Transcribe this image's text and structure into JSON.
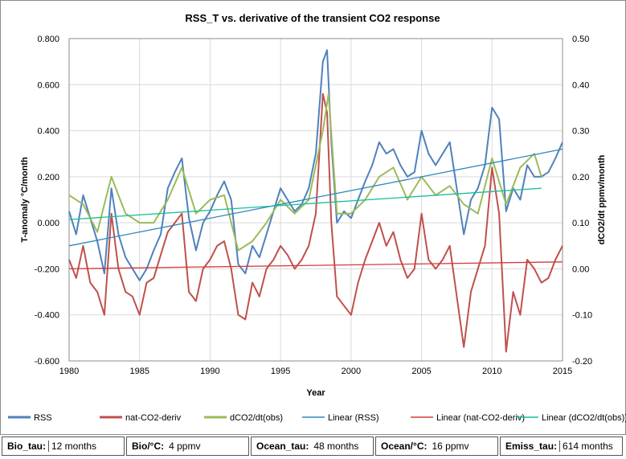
{
  "chart_data": {
    "type": "line",
    "title": "RSS_T vs. derivative of the transient CO2 response",
    "xlabel": "Year",
    "ylabel": "T-anomaly °C/month",
    "y2label": "dCO2/dt ppmv/month",
    "xlim": [
      1980,
      2015
    ],
    "ylim": [
      -0.6,
      0.8
    ],
    "y2lim": [
      -0.2,
      0.5
    ],
    "x_ticks": [
      "1980",
      "1985",
      "1990",
      "1995",
      "2000",
      "2005",
      "2010",
      "2015"
    ],
    "y_ticks": [
      "-0.600",
      "-0.400",
      "-0.200",
      "0.000",
      "0.200",
      "0.400",
      "0.600",
      "0.800"
    ],
    "y2_ticks": [
      "-0.20",
      "-0.10",
      "0.00",
      "0.10",
      "0.20",
      "0.30",
      "0.40",
      "0.50"
    ],
    "grid": true,
    "legend_position": "bottom",
    "series": [
      {
        "name": "RSS",
        "axis": "left",
        "color": "#4f81bd",
        "x": [
          1980.0,
          1980.5,
          1981.0,
          1981.5,
          1982.0,
          1982.5,
          1983.0,
          1983.5,
          1984.0,
          1984.5,
          1985.0,
          1985.5,
          1986.0,
          1986.5,
          1987.0,
          1987.5,
          1988.0,
          1988.5,
          1989.0,
          1989.5,
          1990.0,
          1990.5,
          1991.0,
          1991.5,
          1992.0,
          1992.5,
          1993.0,
          1993.5,
          1994.0,
          1994.5,
          1995.0,
          1995.5,
          1996.0,
          1996.5,
          1997.0,
          1997.5,
          1998.0,
          1998.3,
          1998.6,
          1999.0,
          1999.5,
          2000.0,
          2000.5,
          2001.0,
          2001.5,
          2002.0,
          2002.5,
          2003.0,
          2003.5,
          2004.0,
          2004.5,
          2005.0,
          2005.5,
          2006.0,
          2006.5,
          2007.0,
          2007.5,
          2008.0,
          2008.5,
          2009.0,
          2009.5,
          2010.0,
          2010.5,
          2011.0,
          2011.5,
          2012.0,
          2012.5,
          2013.0,
          2013.5,
          2014.0,
          2014.5,
          2015.0
        ],
        "y": [
          0.05,
          -0.05,
          0.12,
          0.02,
          -0.08,
          -0.22,
          0.15,
          -0.05,
          -0.15,
          -0.2,
          -0.25,
          -0.2,
          -0.12,
          -0.05,
          0.15,
          0.22,
          0.28,
          0.02,
          -0.12,
          0.0,
          0.05,
          0.12,
          0.18,
          0.1,
          -0.18,
          -0.22,
          -0.1,
          -0.15,
          -0.05,
          0.05,
          0.15,
          0.1,
          0.05,
          0.08,
          0.15,
          0.3,
          0.7,
          0.75,
          0.35,
          0.0,
          0.05,
          0.02,
          0.1,
          0.18,
          0.25,
          0.35,
          0.3,
          0.32,
          0.25,
          0.2,
          0.22,
          0.4,
          0.3,
          0.25,
          0.3,
          0.35,
          0.15,
          -0.05,
          0.1,
          0.15,
          0.25,
          0.5,
          0.45,
          0.05,
          0.15,
          0.1,
          0.25,
          0.2,
          0.2,
          0.22,
          0.28,
          0.35
        ]
      },
      {
        "name": "nat-CO2-deriv",
        "axis": "right",
        "color": "#c0504d",
        "x": [
          1980.0,
          1980.5,
          1981.0,
          1981.5,
          1982.0,
          1982.5,
          1983.0,
          1983.5,
          1984.0,
          1984.5,
          1985.0,
          1985.5,
          1986.0,
          1986.5,
          1987.0,
          1987.5,
          1988.0,
          1988.5,
          1989.0,
          1989.5,
          1990.0,
          1990.5,
          1991.0,
          1991.5,
          1992.0,
          1992.5,
          1993.0,
          1993.5,
          1994.0,
          1994.5,
          1995.0,
          1995.5,
          1996.0,
          1996.5,
          1997.0,
          1997.5,
          1998.0,
          1998.3,
          1998.6,
          1999.0,
          1999.5,
          2000.0,
          2000.5,
          2001.0,
          2001.5,
          2002.0,
          2002.5,
          2003.0,
          2003.5,
          2004.0,
          2004.5,
          2005.0,
          2005.5,
          2006.0,
          2006.5,
          2007.0,
          2007.5,
          2008.0,
          2008.5,
          2009.0,
          2009.5,
          2010.0,
          2010.5,
          2011.0,
          2011.5,
          2012.0,
          2012.5,
          2013.0,
          2013.5,
          2014.0,
          2014.5,
          2015.0
        ],
        "y": [
          0.02,
          -0.02,
          0.05,
          -0.03,
          -0.05,
          -0.1,
          0.12,
          0.0,
          -0.05,
          -0.06,
          -0.1,
          -0.03,
          -0.02,
          0.03,
          0.08,
          0.1,
          0.12,
          -0.05,
          -0.07,
          0.0,
          0.02,
          0.05,
          0.06,
          0.0,
          -0.1,
          -0.11,
          -0.03,
          -0.06,
          0.0,
          0.02,
          0.05,
          0.03,
          0.0,
          0.02,
          0.05,
          0.12,
          0.38,
          0.34,
          0.1,
          -0.06,
          -0.08,
          -0.1,
          -0.03,
          0.02,
          0.06,
          0.1,
          0.05,
          0.08,
          0.02,
          -0.02,
          0.0,
          0.12,
          0.02,
          0.0,
          0.02,
          0.05,
          -0.06,
          -0.17,
          -0.05,
          0.0,
          0.05,
          0.22,
          0.12,
          -0.18,
          -0.05,
          -0.1,
          0.02,
          0.0,
          -0.03,
          -0.02,
          0.02,
          0.05
        ]
      },
      {
        "name": "dCO2/dt(obs)",
        "axis": "right",
        "color": "#9bbb59",
        "x": [
          1980.0,
          1981.0,
          1982.0,
          1983.0,
          1984.0,
          1985.0,
          1986.0,
          1987.0,
          1988.0,
          1989.0,
          1990.0,
          1991.0,
          1992.0,
          1993.0,
          1994.0,
          1995.0,
          1996.0,
          1997.0,
          1998.0,
          1998.4,
          1999.0,
          2000.0,
          2001.0,
          2002.0,
          2003.0,
          2004.0,
          2005.0,
          2006.0,
          2007.0,
          2008.0,
          2009.0,
          2010.0,
          2011.0,
          2012.0,
          2013.0,
          2013.5
        ],
        "y": [
          0.16,
          0.14,
          0.08,
          0.2,
          0.12,
          0.1,
          0.1,
          0.15,
          0.22,
          0.12,
          0.15,
          0.16,
          0.04,
          0.06,
          0.1,
          0.15,
          0.12,
          0.15,
          0.3,
          0.38,
          0.12,
          0.12,
          0.15,
          0.2,
          0.22,
          0.15,
          0.2,
          0.16,
          0.18,
          0.14,
          0.12,
          0.24,
          0.14,
          0.22,
          0.25,
          0.2
        ]
      },
      {
        "name": "Linear (RSS)",
        "axis": "left",
        "color": "#2e86c1",
        "x": [
          1980,
          2015
        ],
        "y": [
          -0.1,
          0.32
        ]
      },
      {
        "name": "Linear (nat-CO2-deriv)",
        "axis": "right",
        "color": "#d43c3c",
        "x": [
          1980,
          2015
        ],
        "y": [
          0.0,
          0.015
        ]
      },
      {
        "name": "Linear (dCO2/dt(obs))",
        "axis": "right",
        "color": "#1abc9c",
        "x": [
          1980,
          2013.5
        ],
        "y": [
          0.107,
          0.175
        ]
      }
    ]
  },
  "params": [
    {
      "label": "Bio_tau:",
      "value": "12 months"
    },
    {
      "label": "Bio/°C:",
      "value": "4 ppmv"
    },
    {
      "label": "Ocean_tau:",
      "value": "48 months"
    },
    {
      "label": "Ocean/°C:",
      "value": "16 ppmv"
    },
    {
      "label": "Emiss_tau:",
      "value": "614 months"
    }
  ]
}
